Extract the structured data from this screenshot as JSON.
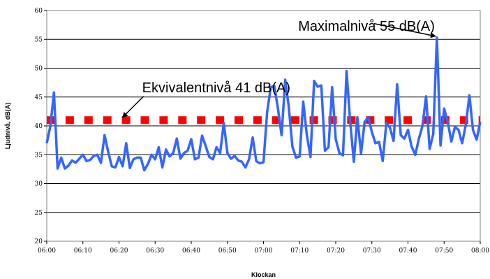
{
  "chart_data": {
    "type": "line",
    "xlabel": "Klockan",
    "ylabel": "Ljudnivå, dB(A)",
    "ylim": [
      20,
      60
    ],
    "yticks": [
      20,
      25,
      30,
      35,
      40,
      45,
      50,
      55,
      60
    ],
    "xlim_minutes_of_day": [
      360,
      480
    ],
    "xtick_labels": [
      "06:00",
      "06:10",
      "06:20",
      "06:30",
      "06:40",
      "06:50",
      "07:00",
      "07:10",
      "07:20",
      "07:30",
      "07:40",
      "07:50",
      "08:00"
    ],
    "grid": "horizontal",
    "legend": "none",
    "series": [
      {
        "color": "#3366ff",
        "style": "solid",
        "x_start": "06:00",
        "x_step_minutes": 1,
        "values": [
          37,
          40,
          45.8,
          32.6,
          34.5,
          32.6,
          33.1,
          34,
          33.6,
          34.3,
          35,
          33.9,
          34.1,
          34.8,
          35,
          33.6,
          38.4,
          35.5,
          33,
          32.8,
          34.6,
          33,
          37,
          32.7,
          34.2,
          34.5,
          34.5,
          32.3,
          33.4,
          35,
          34.2,
          36.3,
          32.8,
          35.9,
          34.7,
          35.3,
          37.8,
          34.3,
          35.3,
          35.7,
          37.7,
          34.2,
          34.5,
          38.3,
          36.5,
          34.6,
          34.2,
          36.3,
          35.3,
          40.5,
          35.3,
          34.3,
          34.8,
          34,
          33.8,
          32.8,
          34.2,
          38,
          33.9,
          33.5,
          33.7,
          42.4,
          46.7,
          46.9,
          43,
          38.4,
          48,
          43.3,
          36.4,
          34.5,
          34.7,
          44.2,
          38.4,
          34.6,
          47.8,
          46.8,
          47,
          35.7,
          36.3,
          46.7,
          37.7,
          35.3,
          34.9,
          49.5,
          40.7,
          33.8,
          41.5,
          35.2,
          40.7,
          41.5,
          38.9,
          37,
          37.2,
          33.9,
          40.5,
          39.7,
          37.4,
          47.2,
          38.4,
          37.8,
          39.3,
          36.4,
          35,
          37.7,
          40,
          45.1,
          36,
          38.6,
          55.3,
          36.6,
          43,
          40.7,
          37.3,
          39.8,
          39.3,
          37,
          40.2,
          45.3,
          39.3,
          37.6,
          40.7
        ]
      },
      {
        "color": "#ff0000",
        "style": "dashed-squares",
        "values_constant": 41
      }
    ],
    "annotations": [
      {
        "text": "Maximalnivå 55 dB(A)",
        "points_to_time": "07:48",
        "points_to_value": 55.3
      },
      {
        "text": "Ekvivalentnivå 41 dB(A)",
        "points_to_time": "06:21",
        "points_to_value": 41
      }
    ]
  }
}
